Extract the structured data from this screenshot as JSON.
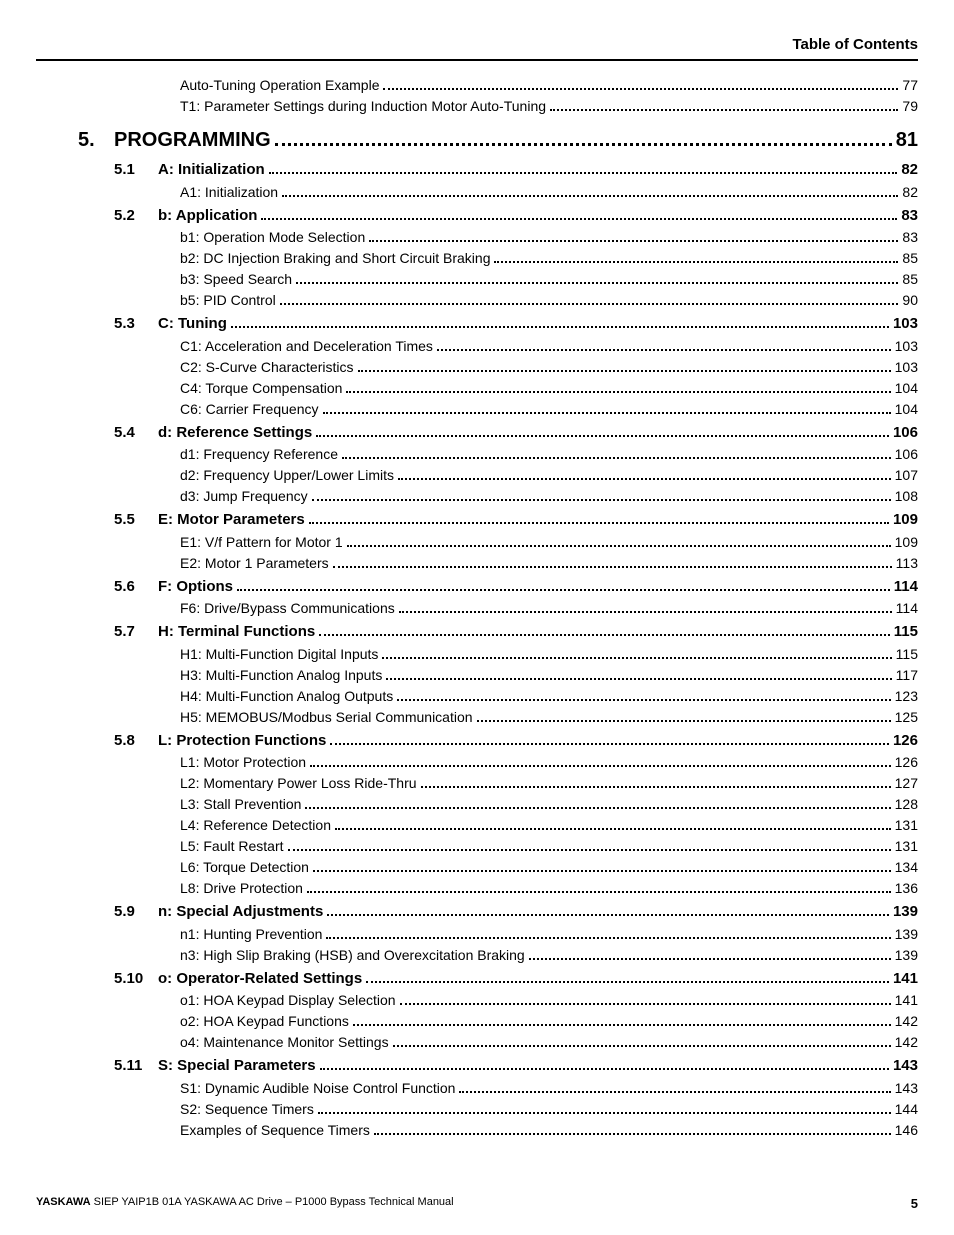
{
  "header": {
    "title": "Table of Contents"
  },
  "orphans": [
    {
      "label": "Auto-Tuning Operation Example",
      "page": "77"
    },
    {
      "label": "T1: Parameter Settings during Induction Motor Auto-Tuning",
      "page": "79"
    }
  ],
  "chapter": {
    "num": "5.",
    "label": "PROGRAMMING",
    "page": "81"
  },
  "sections": [
    {
      "num": "5.1",
      "label": "A: Initialization",
      "page": "82",
      "subs": [
        {
          "label": "A1: Initialization",
          "page": "82"
        }
      ]
    },
    {
      "num": "5.2",
      "label": "b: Application",
      "page": "83",
      "subs": [
        {
          "label": "b1: Operation Mode Selection",
          "page": "83"
        },
        {
          "label": "b2: DC Injection Braking and Short Circuit Braking",
          "page": "85"
        },
        {
          "label": "b3: Speed Search",
          "page": "85"
        },
        {
          "label": "b5: PID Control",
          "page": "90"
        }
      ]
    },
    {
      "num": "5.3",
      "label": "C: Tuning",
      "page": "103",
      "subs": [
        {
          "label": "C1: Acceleration and Deceleration Times",
          "page": "103"
        },
        {
          "label": "C2: S-Curve Characteristics",
          "page": "103"
        },
        {
          "label": "C4: Torque Compensation",
          "page": "104"
        },
        {
          "label": "C6: Carrier Frequency",
          "page": "104"
        }
      ]
    },
    {
      "num": "5.4",
      "label": "d: Reference Settings",
      "page": "106",
      "subs": [
        {
          "label": "d1: Frequency Reference",
          "page": "106"
        },
        {
          "label": "d2: Frequency Upper/Lower Limits",
          "page": "107"
        },
        {
          "label": "d3: Jump Frequency",
          "page": "108"
        }
      ]
    },
    {
      "num": "5.5",
      "label": "E: Motor Parameters",
      "page": "109",
      "subs": [
        {
          "label": "E1: V/f Pattern for Motor 1",
          "page": "109"
        },
        {
          "label": "E2: Motor 1 Parameters",
          "page": "113"
        }
      ]
    },
    {
      "num": "5.6",
      "label": "F: Options",
      "page": "114",
      "subs": [
        {
          "label": "F6: Drive/Bypass Communications",
          "page": "114"
        }
      ]
    },
    {
      "num": "5.7",
      "label": "H: Terminal Functions",
      "page": "115",
      "subs": [
        {
          "label": "H1: Multi-Function Digital Inputs",
          "page": "115"
        },
        {
          "label": "H3: Multi-Function Analog Inputs",
          "page": "117"
        },
        {
          "label": "H4: Multi-Function Analog Outputs",
          "page": "123"
        },
        {
          "label": "H5: MEMOBUS/Modbus Serial Communication",
          "page": "125"
        }
      ]
    },
    {
      "num": "5.8",
      "label": "L: Protection Functions",
      "page": "126",
      "subs": [
        {
          "label": "L1: Motor Protection",
          "page": "126"
        },
        {
          "label": "L2: Momentary Power Loss Ride-Thru",
          "page": "127"
        },
        {
          "label": "L3: Stall Prevention",
          "page": "128"
        },
        {
          "label": "L4: Reference Detection",
          "page": "131"
        },
        {
          "label": "L5: Fault Restart",
          "page": "131"
        },
        {
          "label": "L6: Torque Detection",
          "page": "134"
        },
        {
          "label": "L8: Drive Protection",
          "page": "136"
        }
      ]
    },
    {
      "num": "5.9",
      "label": "n: Special Adjustments",
      "page": "139",
      "subs": [
        {
          "label": "n1: Hunting Prevention",
          "page": "139"
        },
        {
          "label": "n3: High Slip Braking (HSB) and Overexcitation Braking",
          "page": "139"
        }
      ]
    },
    {
      "num": "5.10",
      "label": "o: Operator-Related Settings",
      "page": "141",
      "subs": [
        {
          "label": "o1: HOA Keypad Display Selection",
          "page": "141"
        },
        {
          "label": "o2: HOA Keypad Functions",
          "page": "142"
        },
        {
          "label": "o4: Maintenance Monitor Settings",
          "page": "142"
        }
      ]
    },
    {
      "num": "5.11",
      "label": "S: Special Parameters",
      "page": "143",
      "subs": [
        {
          "label": "S1: Dynamic Audible Noise Control Function",
          "page": "143"
        },
        {
          "label": "S2: Sequence Timers",
          "page": "144"
        },
        {
          "label": "Examples of Sequence Timers",
          "page": "146"
        }
      ]
    }
  ],
  "footer": {
    "brand": "YASKAWA",
    "doc": " SIEP YAIP1B 01A YASKAWA AC Drive – P1000 Bypass Technical Manual",
    "page": "5"
  }
}
